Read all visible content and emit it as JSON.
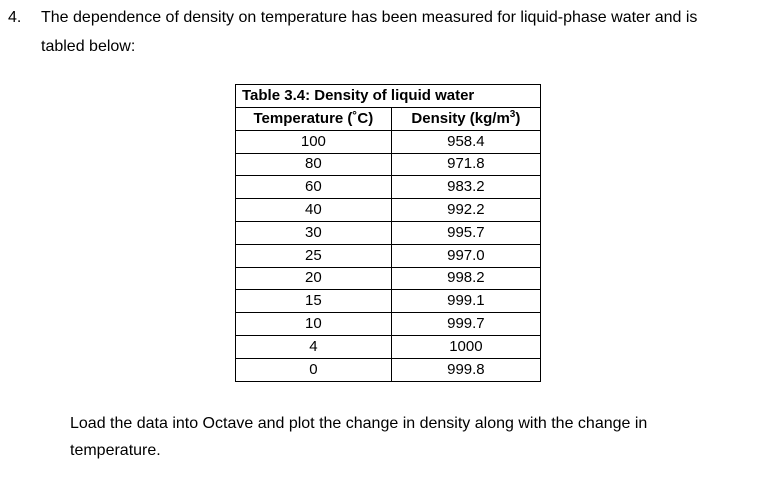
{
  "question": {
    "number": "4.",
    "line1": "The dependence of density on temperature has been measured for liquid-phase water and is",
    "line2": "tabled below:"
  },
  "table": {
    "caption": "Table 3.4: Density of liquid water",
    "headers": {
      "temperature": "Temperature (˚C)",
      "density_prefix": "Density (kg/m",
      "density_sup": "3",
      "density_suffix": ")"
    },
    "rows": [
      {
        "temp": "100",
        "density": "958.4"
      },
      {
        "temp": "80",
        "density": "971.8"
      },
      {
        "temp": "60",
        "density": "983.2"
      },
      {
        "temp": "40",
        "density": "992.2"
      },
      {
        "temp": "30",
        "density": "995.7"
      },
      {
        "temp": "25",
        "density": "997.0"
      },
      {
        "temp": "20",
        "density": "998.2"
      },
      {
        "temp": "15",
        "density": "999.1"
      },
      {
        "temp": "10",
        "density": "999.7"
      },
      {
        "temp": "4",
        "density": "1000"
      },
      {
        "temp": "0",
        "density": "999.8"
      }
    ]
  },
  "closing": {
    "line1": "Load the data into Octave and plot the change in density along with the change in",
    "line2": "temperature."
  }
}
